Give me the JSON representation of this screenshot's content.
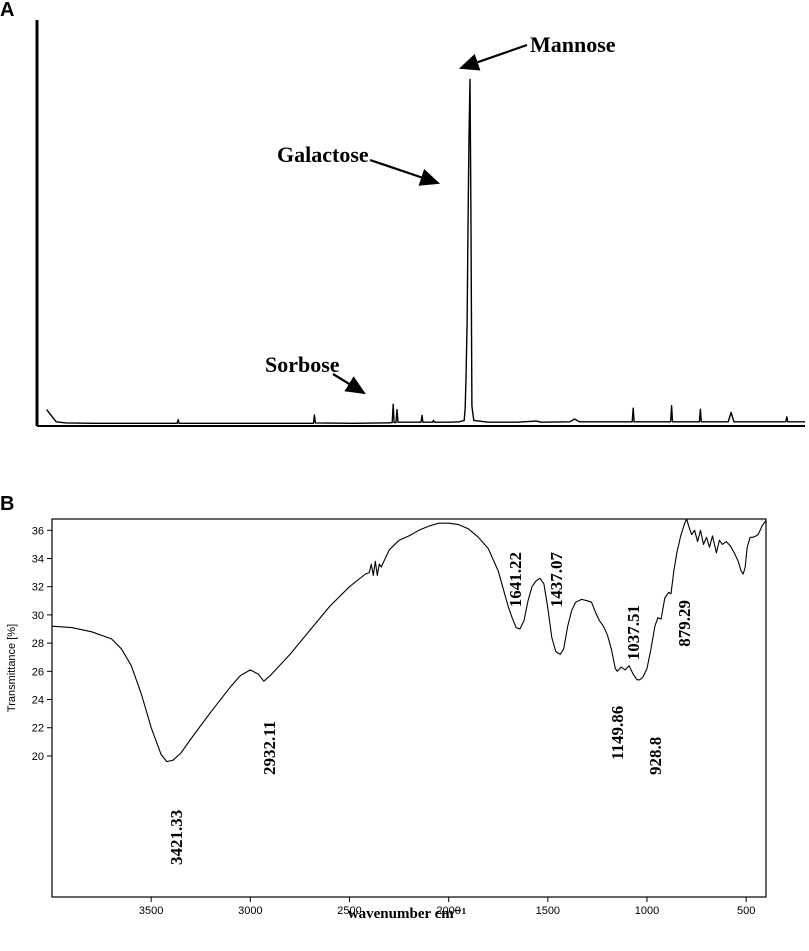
{
  "chart_data": [
    {
      "panel_label": "A",
      "type": "line",
      "title": "",
      "xlabel": "",
      "ylabel": "",
      "grid": false,
      "annotations": [
        {
          "text": "Mannose",
          "target_x": 451,
          "target_y": 96
        },
        {
          "text": "Galactose",
          "target_x": 448,
          "target_y": 12
        },
        {
          "text": "Sorbose",
          "target_x": 373,
          "target_y": 2.4
        }
      ],
      "series": [
        {
          "values": [
            [
              10,
              4.0
            ],
            [
              20,
              0.6
            ],
            [
              30,
              0.3
            ],
            [
              60,
              0.2
            ],
            [
              100,
              0.2
            ],
            [
              146,
              0.2
            ],
            [
              147,
              1.2
            ],
            [
              148,
              0.2
            ],
            [
              200,
              0.2
            ],
            [
              250,
              0.2
            ],
            [
              288,
              0.2
            ],
            [
              289,
              2.5
            ],
            [
              290,
              0.3
            ],
            [
              330,
              0.2
            ],
            [
              365,
              0.3
            ],
            [
              370,
              0.4
            ],
            [
              371,
              5.5
            ],
            [
              372,
              0.4
            ],
            [
              374,
              0.4
            ],
            [
              375,
              4.0
            ],
            [
              376,
              0.5
            ],
            [
              390,
              0.5
            ],
            [
              400,
              0.5
            ],
            [
              401,
              2.4
            ],
            [
              402,
              0.5
            ],
            [
              412,
              0.5
            ],
            [
              413,
              1.0
            ],
            [
              414,
              0.5
            ],
            [
              430,
              0.5
            ],
            [
              440,
              0.6
            ],
            [
              445,
              1.0
            ],
            [
              446,
              4.5
            ],
            [
              447,
              14.0
            ],
            [
              448,
              28.0
            ],
            [
              449,
              55.0
            ],
            [
              450,
              80.0
            ],
            [
              451,
              96.0
            ],
            [
              452,
              60.0
            ],
            [
              453,
              5.0
            ],
            [
              455,
              1.0
            ],
            [
              470,
              0.5
            ],
            [
              500,
              0.5
            ],
            [
              520,
              0.8
            ],
            [
              525,
              0.5
            ],
            [
              555,
              0.6
            ],
            [
              560,
              1.4
            ],
            [
              565,
              0.6
            ],
            [
              600,
              0.6
            ],
            [
              620,
              0.6
            ],
            [
              621,
              4.4
            ],
            [
              622,
              0.6
            ],
            [
              660,
              0.6
            ],
            [
              661,
              5.1
            ],
            [
              662,
              0.6
            ],
            [
              690,
              0.6
            ],
            [
              691,
              4.1
            ],
            [
              692,
              0.6
            ],
            [
              720,
              0.6
            ],
            [
              723,
              3.2
            ],
            [
              726,
              0.6
            ],
            [
              760,
              0.6
            ],
            [
              780,
              0.6
            ],
            [
              781,
              2.0
            ],
            [
              782,
              0.6
            ],
            [
              800,
              0.6
            ]
          ]
        }
      ]
    },
    {
      "panel_label": "B",
      "type": "line",
      "title": "",
      "xlabel": "wavenumber cm⁻¹",
      "ylabel": "Transmittance [%]",
      "x_reversed": true,
      "xlim": [
        4000,
        400
      ],
      "ylim": [
        10,
        36.8
      ],
      "x_ticks": [
        3500,
        3000,
        2500,
        2000,
        1500,
        1000,
        500
      ],
      "y_ticks": [
        20,
        22,
        24,
        26,
        28,
        30,
        32,
        34,
        36
      ],
      "grid": false,
      "peak_labels": [
        {
          "text": "3421.33",
          "x": 3421.33,
          "y": 19.6
        },
        {
          "text": "2932.11",
          "x": 2932.11,
          "y": 25.3
        },
        {
          "text": "1641.22",
          "x": 1641.22,
          "y": 29.0
        },
        {
          "text": "1437.07",
          "x": 1437.07,
          "y": 27.2
        },
        {
          "text": "1149.86",
          "x": 1149.86,
          "y": 26.0
        },
        {
          "text": "1037.51",
          "x": 1037.51,
          "y": 25.4
        },
        {
          "text": "928.8",
          "x": 928.8,
          "y": 29.7
        },
        {
          "text": "879.29",
          "x": 879.29,
          "y": 31.5
        }
      ],
      "series": [
        {
          "values": [
            [
              4000,
              29.2
            ],
            [
              3900,
              29.1
            ],
            [
              3800,
              28.8
            ],
            [
              3700,
              28.3
            ],
            [
              3650,
              27.6
            ],
            [
              3600,
              26.4
            ],
            [
              3550,
              24.4
            ],
            [
              3500,
              22.0
            ],
            [
              3450,
              20.1
            ],
            [
              3421,
              19.6
            ],
            [
              3390,
              19.7
            ],
            [
              3350,
              20.2
            ],
            [
              3300,
              21.2
            ],
            [
              3200,
              23.1
            ],
            [
              3100,
              24.9
            ],
            [
              3050,
              25.7
            ],
            [
              3000,
              26.1
            ],
            [
              2960,
              25.8
            ],
            [
              2932,
              25.3
            ],
            [
              2900,
              25.7
            ],
            [
              2800,
              27.2
            ],
            [
              2700,
              28.9
            ],
            [
              2600,
              30.6
            ],
            [
              2500,
              32.0
            ],
            [
              2420,
              32.9
            ],
            [
              2400,
              33.0
            ],
            [
              2390,
              33.6
            ],
            [
              2380,
              32.8
            ],
            [
              2370,
              33.8
            ],
            [
              2360,
              32.8
            ],
            [
              2350,
              33.6
            ],
            [
              2340,
              33.4
            ],
            [
              2300,
              34.6
            ],
            [
              2250,
              35.3
            ],
            [
              2200,
              35.6
            ],
            [
              2150,
              36.0
            ],
            [
              2100,
              36.3
            ],
            [
              2050,
              36.5
            ],
            [
              2000,
              36.5
            ],
            [
              1950,
              36.4
            ],
            [
              1900,
              36.1
            ],
            [
              1850,
              35.5
            ],
            [
              1800,
              34.7
            ],
            [
              1750,
              33.1
            ],
            [
              1720,
              31.6
            ],
            [
              1700,
              30.6
            ],
            [
              1680,
              29.8
            ],
            [
              1660,
              29.1
            ],
            [
              1641,
              29.0
            ],
            [
              1620,
              29.6
            ],
            [
              1600,
              31.0
            ],
            [
              1580,
              32.0
            ],
            [
              1560,
              32.4
            ],
            [
              1540,
              32.6
            ],
            [
              1520,
              32.2
            ],
            [
              1500,
              30.5
            ],
            [
              1480,
              28.4
            ],
            [
              1460,
              27.4
            ],
            [
              1437,
              27.2
            ],
            [
              1420,
              27.6
            ],
            [
              1400,
              29.2
            ],
            [
              1380,
              30.3
            ],
            [
              1360,
              30.9
            ],
            [
              1330,
              31.1
            ],
            [
              1300,
              31.0
            ],
            [
              1280,
              30.9
            ],
            [
              1260,
              30.2
            ],
            [
              1240,
              29.6
            ],
            [
              1220,
              29.2
            ],
            [
              1200,
              28.6
            ],
            [
              1180,
              27.6
            ],
            [
              1160,
              26.2
            ],
            [
              1150,
              26.0
            ],
            [
              1130,
              26.3
            ],
            [
              1110,
              26.1
            ],
            [
              1090,
              26.4
            ],
            [
              1070,
              25.8
            ],
            [
              1050,
              25.4
            ],
            [
              1037,
              25.4
            ],
            [
              1020,
              25.6
            ],
            [
              1000,
              26.2
            ],
            [
              980,
              27.6
            ],
            [
              960,
              29.2
            ],
            [
              945,
              29.8
            ],
            [
              929,
              29.7
            ],
            [
              910,
              31.2
            ],
            [
              890,
              31.6
            ],
            [
              879,
              31.5
            ],
            [
              865,
              33.1
            ],
            [
              850,
              34.4
            ],
            [
              830,
              35.6
            ],
            [
              810,
              36.5
            ],
            [
              800,
              36.8
            ],
            [
              790,
              36.3
            ],
            [
              775,
              35.7
            ],
            [
              760,
              36.0
            ],
            [
              745,
              35.2
            ],
            [
              730,
              36.0
            ],
            [
              715,
              35.0
            ],
            [
              700,
              35.5
            ],
            [
              685,
              34.8
            ],
            [
              670,
              35.6
            ],
            [
              650,
              34.4
            ],
            [
              635,
              35.3
            ],
            [
              620,
              35.0
            ],
            [
              600,
              35.2
            ],
            [
              580,
              34.9
            ],
            [
              560,
              34.4
            ],
            [
              540,
              33.8
            ],
            [
              525,
              33.1
            ],
            [
              515,
              32.9
            ],
            [
              505,
              33.4
            ],
            [
              495,
              34.8
            ],
            [
              480,
              35.5
            ],
            [
              465,
              35.5
            ],
            [
              450,
              35.6
            ],
            [
              440,
              35.7
            ],
            [
              430,
              36.0
            ],
            [
              420,
              36.3
            ],
            [
              410,
              36.5
            ],
            [
              400,
              36.7
            ]
          ]
        }
      ]
    }
  ]
}
